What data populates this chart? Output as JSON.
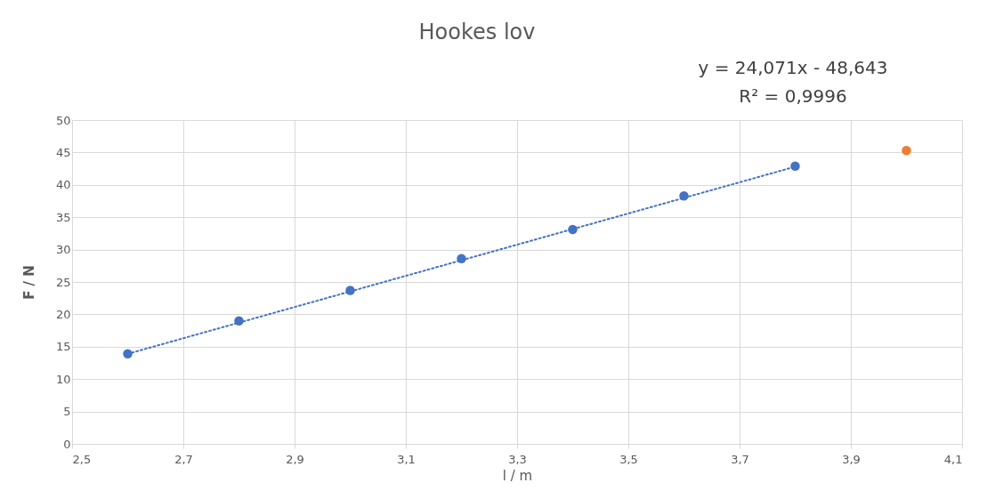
{
  "chart_data": {
    "type": "scatter",
    "title": "Hookes lov",
    "xlabel": "l / m",
    "ylabel": "F / N",
    "annotations": [
      "y = 24,071x - 48,643",
      "R² = 0,9996"
    ],
    "series": [
      {
        "color": "#4472c4",
        "x": [
          2.6,
          2.8,
          3.0,
          3.2,
          3.4,
          3.6,
          3.8
        ],
        "values": [
          13.9,
          19.0,
          23.7,
          28.6,
          33.1,
          38.3,
          42.9
        ],
        "marker": "circle"
      },
      {
        "color": "#ed7d31",
        "x": [
          4.0
        ],
        "values": [
          45.3
        ],
        "marker": "circle"
      },
      {
        "type": "line",
        "color": "#4472c4",
        "x": [
          2.6,
          3.8
        ],
        "values": [
          13.9,
          42.8
        ],
        "line_style": "dotted",
        "marker": "none"
      }
    ],
    "xlim": [
      2.5,
      4.1
    ],
    "xticks": [
      {
        "value": 2.5,
        "label": "2,5"
      },
      {
        "value": 2.7,
        "label": "2,7"
      },
      {
        "value": 2.9,
        "label": "2,9"
      },
      {
        "value": 3.1,
        "label": "3,1"
      },
      {
        "value": 3.3,
        "label": "3,3"
      },
      {
        "value": 3.5,
        "label": "3,5"
      },
      {
        "value": 3.7,
        "label": "3,7"
      },
      {
        "value": 3.9,
        "label": "3,9"
      },
      {
        "value": 4.1,
        "label": "4,1"
      }
    ],
    "ylim": [
      0,
      50
    ],
    "yticks": [
      0,
      5,
      10,
      15,
      20,
      25,
      30,
      35,
      40,
      45,
      50
    ],
    "grid": true
  }
}
